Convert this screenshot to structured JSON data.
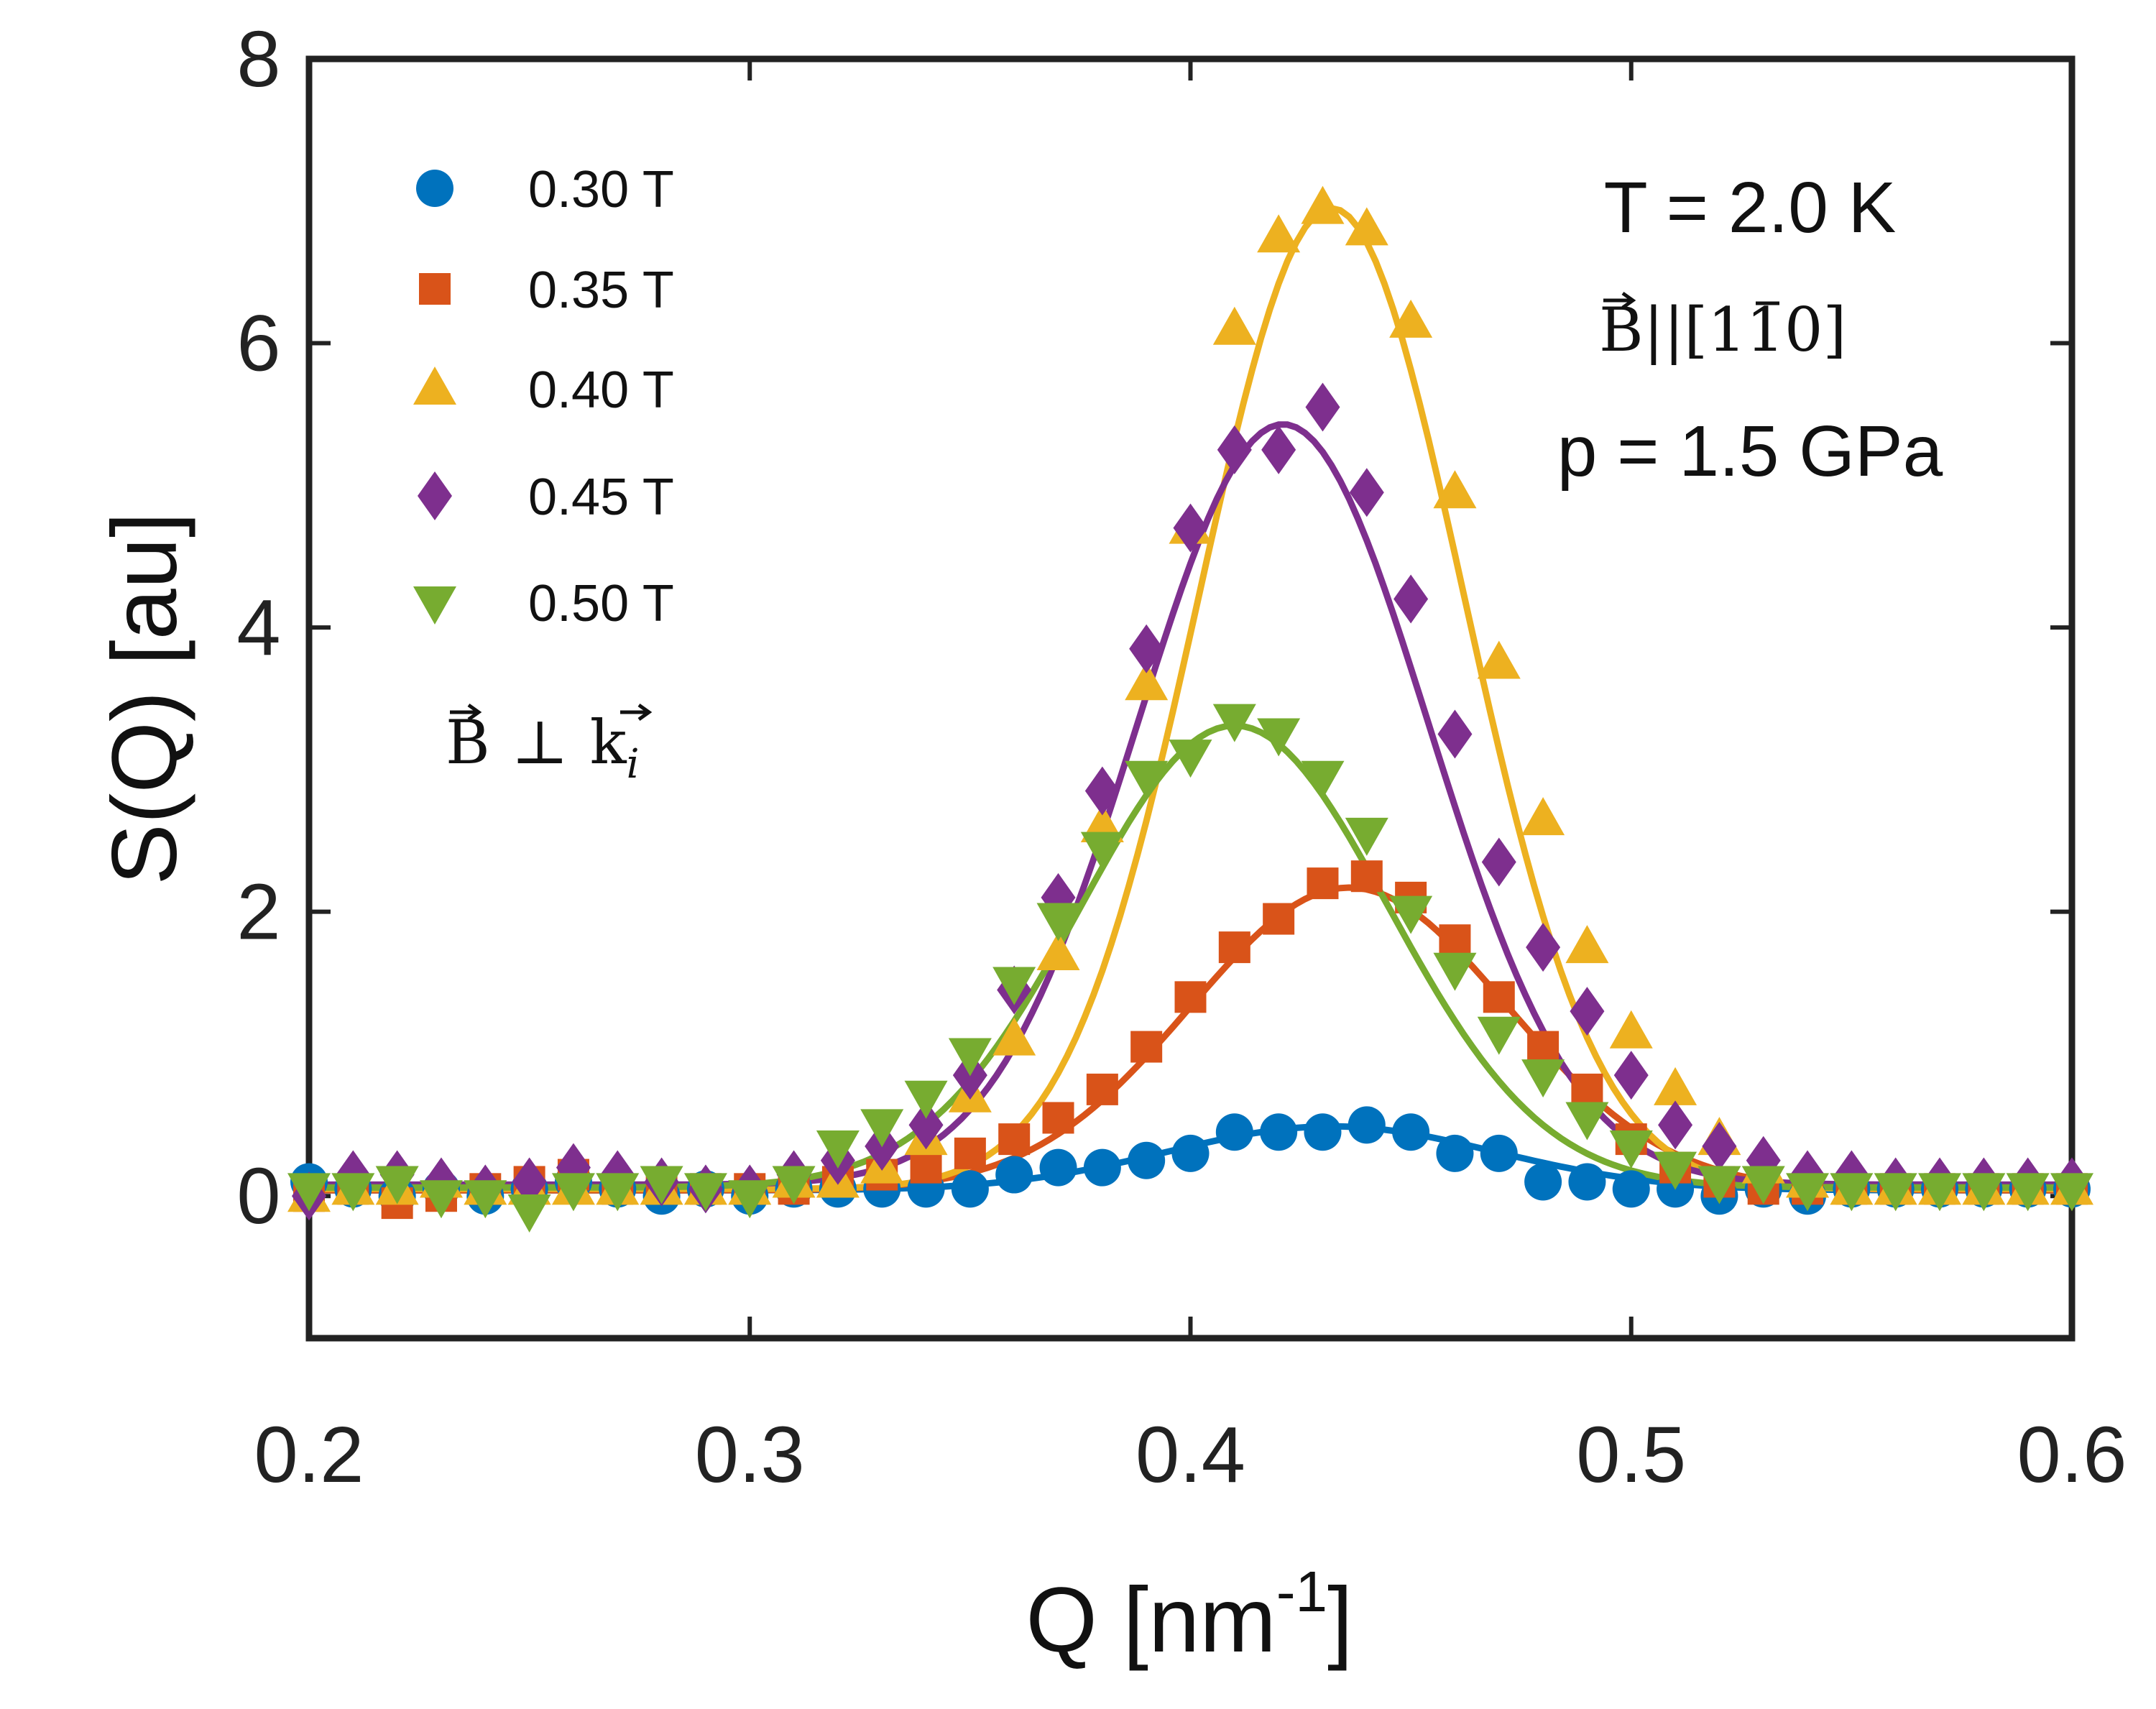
{
  "chart_data": {
    "type": "scatter",
    "title": "",
    "xlabel": "Q [nm",
    "xlabel_sup": "-1",
    "xlabel_close": "]",
    "ylabel": "S(Q)  [au]",
    "xlim": [
      0.2,
      0.6
    ],
    "ylim": [
      -1,
      8
    ],
    "xticks": [
      0.2,
      0.3,
      0.4,
      0.5,
      0.6
    ],
    "xtick_labels": [
      "0.2",
      "0.3",
      "0.4",
      "0.5",
      "0.6"
    ],
    "yticks": [
      0,
      2,
      4,
      6,
      8
    ],
    "ytick_labels": [
      "0",
      "2",
      "4",
      "6",
      "8"
    ],
    "grid": false,
    "legend_position": "top-left",
    "annotations": {
      "temperature": "T = 2.0 K",
      "field_direction": "B||[110]",
      "field_direction_base": "B",
      "field_direction_bracket": "||[1",
      "field_direction_bar_digit": "1",
      "field_direction_end": "0]",
      "pressure": "p = 1.5 GPa",
      "geometry": "B ⊥ k_i",
      "geometry_b": "B",
      "geometry_perp": "⊥",
      "geometry_k": "k",
      "geometry_sub": "i"
    },
    "series": [
      {
        "name": "0.30 T",
        "marker": "circle",
        "color": "#0072BD",
        "x": [
          0.2,
          0.21,
          0.22,
          0.23,
          0.24,
          0.25,
          0.26,
          0.27,
          0.28,
          0.29,
          0.3,
          0.31,
          0.32,
          0.33,
          0.34,
          0.35,
          0.36,
          0.37,
          0.38,
          0.39,
          0.4,
          0.41,
          0.42,
          0.43,
          0.44,
          0.45,
          0.46,
          0.47,
          0.48,
          0.49,
          0.5,
          0.51,
          0.52,
          0.53,
          0.54,
          0.55,
          0.56,
          0.57,
          0.58,
          0.59,
          0.6
        ],
        "y": [
          0.1,
          0.05,
          0,
          0.05,
          0,
          0.05,
          0.1,
          0.05,
          0,
          0.05,
          0,
          0.05,
          0.05,
          0.05,
          0.05,
          0.05,
          0.15,
          0.2,
          0.2,
          0.25,
          0.3,
          0.45,
          0.45,
          0.45,
          0.5,
          0.45,
          0.3,
          0.3,
          0.1,
          0.1,
          0.05,
          0.05,
          0,
          0.05,
          0,
          0.05,
          0.05,
          0.05,
          0.05,
          0.05,
          0.05
        ],
        "fit": {
          "amplitude": 0.45,
          "center": 0.432,
          "sigma": 0.037,
          "baseline": 0.04
        }
      },
      {
        "name": "0.35 T",
        "marker": "square",
        "color": "#D95319",
        "x": [
          0.2,
          0.21,
          0.22,
          0.23,
          0.24,
          0.25,
          0.26,
          0.27,
          0.28,
          0.29,
          0.3,
          0.31,
          0.32,
          0.33,
          0.34,
          0.35,
          0.36,
          0.37,
          0.38,
          0.39,
          0.4,
          0.41,
          0.42,
          0.43,
          0.44,
          0.45,
          0.46,
          0.47,
          0.48,
          0.49,
          0.5,
          0.51,
          0.52,
          0.53,
          0.54,
          0.55,
          0.56,
          0.57,
          0.58,
          0.59,
          0.6
        ],
        "y": [
          0,
          0.05,
          -0.05,
          0,
          0.05,
          0.1,
          0.15,
          0.05,
          0.05,
          0.05,
          0.05,
          0.05,
          0.1,
          0.15,
          0.2,
          0.3,
          0.4,
          0.55,
          0.75,
          1.05,
          1.4,
          1.75,
          1.95,
          2.2,
          2.25,
          2.1,
          1.8,
          1.4,
          1.05,
          0.75,
          0.4,
          0.2,
          0.1,
          0.05,
          0.05,
          0.05,
          0.05,
          0.05,
          0.05,
          0.05,
          0.05
        ],
        "fit": {
          "amplitude": 2.13,
          "center": 0.436,
          "sigma": 0.036,
          "baseline": 0.04
        }
      },
      {
        "name": "0.40 T",
        "marker": "triangle-up",
        "color": "#EDB120",
        "x": [
          0.2,
          0.21,
          0.22,
          0.23,
          0.24,
          0.25,
          0.26,
          0.27,
          0.28,
          0.29,
          0.3,
          0.31,
          0.32,
          0.33,
          0.34,
          0.35,
          0.36,
          0.37,
          0.38,
          0.39,
          0.4,
          0.41,
          0.42,
          0.43,
          0.44,
          0.45,
          0.46,
          0.47,
          0.48,
          0.49,
          0.5,
          0.51,
          0.52,
          0.53,
          0.54,
          0.55,
          0.56,
          0.57,
          0.58,
          0.59,
          0.6
        ],
        "y": [
          0,
          0.05,
          0.05,
          0.1,
          0.05,
          0.05,
          0.05,
          0.05,
          0.05,
          0.05,
          0.05,
          0.1,
          0.1,
          0.2,
          0.4,
          0.7,
          1.1,
          1.7,
          2.6,
          3.6,
          4.7,
          6.1,
          6.75,
          6.95,
          6.8,
          6.15,
          4.95,
          3.75,
          2.65,
          1.75,
          1.15,
          0.75,
          0.4,
          0.2,
          0.1,
          0.05,
          0.05,
          0.05,
          0.05,
          0.05,
          0.05
        ],
        "fit": {
          "amplitude": 6.9,
          "center": 0.432,
          "sigma": 0.03,
          "baseline": 0.05
        }
      },
      {
        "name": "0.45 T",
        "marker": "diamond",
        "color": "#7E2F8E",
        "x": [
          0.2,
          0.21,
          0.22,
          0.23,
          0.24,
          0.25,
          0.26,
          0.27,
          0.28,
          0.29,
          0.3,
          0.31,
          0.32,
          0.33,
          0.34,
          0.35,
          0.36,
          0.37,
          0.38,
          0.39,
          0.4,
          0.41,
          0.42,
          0.43,
          0.44,
          0.45,
          0.46,
          0.47,
          0.48,
          0.49,
          0.5,
          0.51,
          0.52,
          0.53,
          0.54,
          0.55,
          0.56,
          0.57,
          0.58,
          0.59,
          0.6
        ],
        "y": [
          0,
          0.15,
          0.15,
          0.1,
          0.05,
          0.1,
          0.2,
          0.15,
          0.1,
          0.05,
          0.05,
          0.15,
          0.25,
          0.35,
          0.5,
          0.85,
          1.45,
          2.1,
          2.85,
          3.85,
          4.7,
          5.25,
          5.25,
          5.55,
          4.95,
          4.2,
          3.25,
          2.35,
          1.75,
          1.3,
          0.85,
          0.5,
          0.35,
          0.25,
          0.15,
          0.15,
          0.1,
          0.1,
          0.1,
          0.1,
          0.1
        ],
        "fit": {
          "amplitude": 5.35,
          "center": 0.421,
          "sigma": 0.033,
          "baseline": 0.08
        }
      },
      {
        "name": "0.50 T",
        "marker": "triangle-down",
        "color": "#77AC30",
        "x": [
          0.2,
          0.21,
          0.22,
          0.23,
          0.24,
          0.25,
          0.26,
          0.27,
          0.28,
          0.29,
          0.3,
          0.31,
          0.32,
          0.33,
          0.34,
          0.35,
          0.36,
          0.37,
          0.38,
          0.39,
          0.4,
          0.41,
          0.42,
          0.43,
          0.44,
          0.45,
          0.46,
          0.47,
          0.48,
          0.49,
          0.5,
          0.51,
          0.52,
          0.53,
          0.54,
          0.55,
          0.56,
          0.57,
          0.58,
          0.59,
          0.6
        ],
        "y": [
          0.05,
          0.05,
          0.1,
          0,
          0,
          -0.1,
          0.05,
          0.05,
          0.1,
          0.05,
          0,
          0.1,
          0.35,
          0.5,
          0.7,
          1,
          1.5,
          1.95,
          2.45,
          2.95,
          3.1,
          3.35,
          3.25,
          2.95,
          2.55,
          2,
          1.6,
          1.15,
          0.85,
          0.55,
          0.35,
          0.2,
          0.1,
          0.1,
          0.05,
          0.05,
          0.05,
          0.05,
          0.05,
          0.05,
          0.05
        ],
        "fit": {
          "amplitude": 3.25,
          "center": 0.41,
          "sigma": 0.035,
          "baseline": 0.06
        }
      }
    ]
  }
}
